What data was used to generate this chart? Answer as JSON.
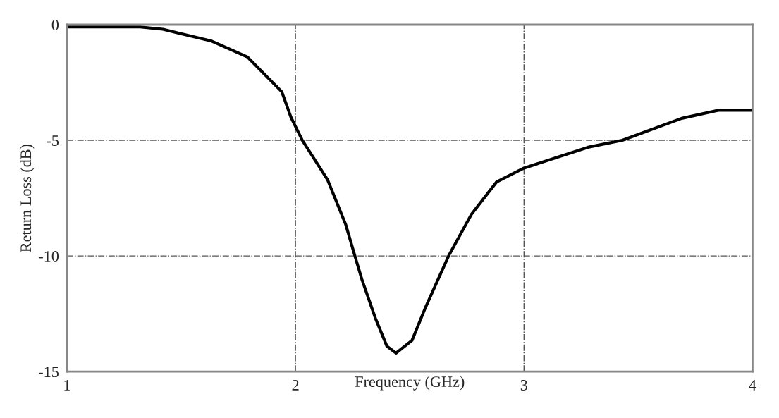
{
  "chart_data": {
    "type": "line",
    "xlabel": "Frequency (GHz)",
    "ylabel": "Return Loss (dB)",
    "xlim": [
      1,
      4
    ],
    "ylim": [
      -15,
      0
    ],
    "xticks": [
      1,
      2,
      3,
      4
    ],
    "yticks": [
      -15,
      -10,
      -5,
      0
    ],
    "grid": true,
    "series": [
      {
        "color": "#000000",
        "x": [
          1,
          1.32,
          1.42,
          1.63,
          1.79,
          1.94,
          1.98,
          2.03,
          2.14,
          2.22,
          2.26,
          2.29,
          2.35,
          2.4,
          2.44,
          2.51,
          2.57,
          2.67,
          2.77,
          2.88,
          3.0,
          3.28,
          3.43,
          3.69,
          3.85,
          4.0
        ],
        "values": [
          -0.1,
          -0.1,
          -0.2,
          -0.7,
          -1.4,
          -2.9,
          -4.0,
          -5.0,
          -6.7,
          -8.65,
          -10,
          -11.0,
          -12.7,
          -13.9,
          -14.2,
          -13.65,
          -12.2,
          -10,
          -8.2,
          -6.8,
          -6.2,
          -5.3,
          -5.0,
          -4.05,
          -3.7,
          -3.7
        ]
      }
    ]
  }
}
